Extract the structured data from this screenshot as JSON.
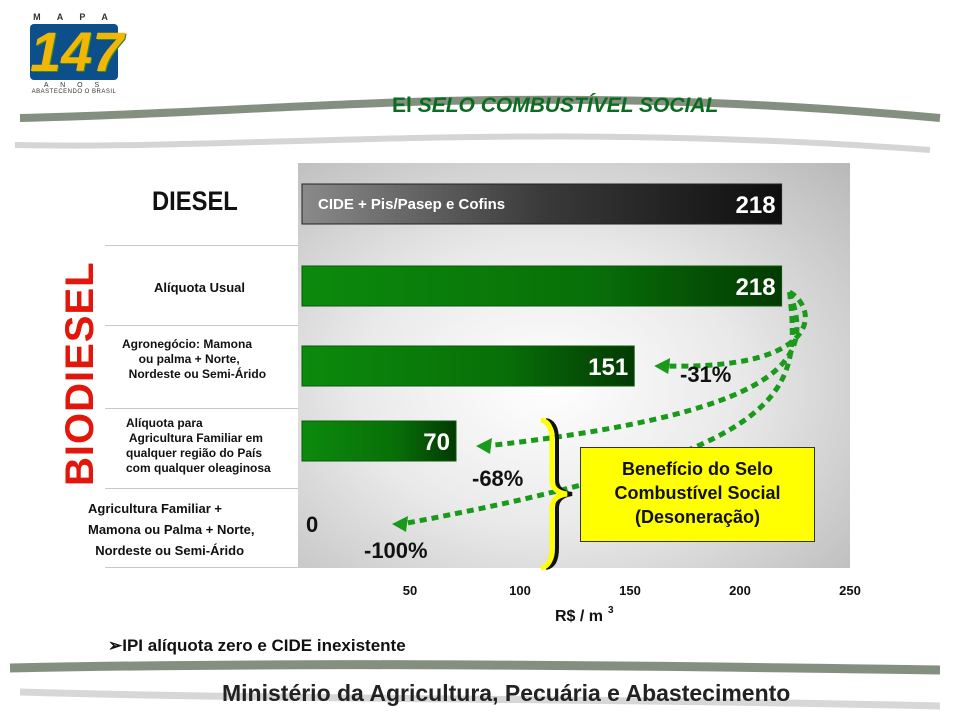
{
  "header": {
    "logo": {
      "top": "M A P A",
      "number": "147",
      "middle": "A N O S",
      "bottom": "ABASTECENDO O BRASIL"
    },
    "title_prefix": "El",
    "title_italic": "SELO COMBUSTÍVEL SOCIAL"
  },
  "labels": {
    "diesel": "DIESEL",
    "biodiesel": "BIODIESEL"
  },
  "callout": {
    "line1": "Benefício do Selo",
    "line2": "Combustível Social",
    "line3": "(Desoneração)"
  },
  "footnote": "➢IPI alíquota zero e CIDE inexistente",
  "footer": "Ministério da Agricultura, Pecuária e Abastecimento",
  "colors": {
    "title": "#0b6b1f",
    "bar_green": "#0a7a0a",
    "bar_dark": "#2a2a2a",
    "arrow": "#1a9a1a",
    "callout": "#ffff00",
    "biodiesel": "#e3160b"
  },
  "chart_data": {
    "type": "bar",
    "orientation": "horizontal",
    "categories": [
      "DIESEL",
      "Alíquota Usual",
      "Agronegócio: Mamona\n     ou palma + Norte,\n  Nordeste ou Semi-Árido",
      "Alíquota para\n Agricultura Familiar em\nqualquer região do País\ncom qualquer oleaginosa",
      "Agricultura Familiar +\nMamona ou Palma + Norte,\n  Nordeste ou Semi-Árido"
    ],
    "values": [
      218,
      218,
      151,
      70,
      0
    ],
    "value_labels": [
      "218",
      "218",
      "151",
      "70",
      "0"
    ],
    "bar_inner_label": "CIDE + Pis/Pasep e Cofins",
    "reductions": [
      "-31%",
      "-68%",
      "-100%"
    ],
    "xlabel": "R$ / m",
    "xlabel_sup": "3",
    "xlim": [
      0,
      250
    ],
    "xticks": [
      50,
      100,
      150,
      200,
      250
    ]
  }
}
